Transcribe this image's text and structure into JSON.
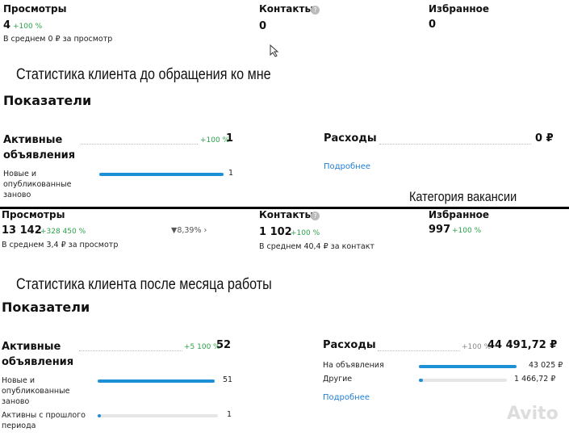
{
  "before": {
    "views": {
      "label": "Просмотры",
      "value": "4",
      "change": "+100 %",
      "avg": "В среднем 0 ₽ за просмотр"
    },
    "contacts": {
      "label": "Контакты",
      "help": "?",
      "value": "0"
    },
    "favorites": {
      "label": "Избранное",
      "value": "0"
    },
    "caption": "Статистика клиента до обращения ко мне",
    "indicators": {
      "title": "Показатели",
      "ads": {
        "label": "Активные объявления",
        "change": "+100 %",
        "value": "1",
        "rows": [
          {
            "label": "Новые и опубликованные заново",
            "value": "1"
          }
        ]
      },
      "expenses": {
        "label": "Расходы",
        "value": "0 ₽",
        "more": "Подробнее"
      }
    }
  },
  "category_caption": "Категория вакансии",
  "after": {
    "views": {
      "label": "Просмотры",
      "value": "13 142",
      "change": "+328 450 %",
      "trend": "8,39%",
      "avg": "В среднем 3,4 ₽ за просмотр"
    },
    "contacts": {
      "label": "Контакты",
      "help": "?",
      "value": "1 102",
      "change": "+100 %",
      "avg": "В среднем 40,4 ₽ за контакт"
    },
    "favorites": {
      "label": "Избранное",
      "value": "997",
      "change": "+100 %"
    },
    "caption": "Статистика клиента после месяца работы",
    "indicators": {
      "title": "Показатели",
      "ads": {
        "label": "Активные объявления",
        "change": "+5 100 %",
        "value": "52",
        "rows": [
          {
            "label": "Новые и опубликованные заново",
            "value": "51"
          },
          {
            "label": "Активны с прошлого периода",
            "value": "1"
          }
        ]
      },
      "expenses": {
        "label": "Расходы",
        "change": "+100 %",
        "value": "44 491,72 ₽",
        "rows": [
          {
            "label": "На объявления",
            "value": "43 025 ₽"
          },
          {
            "label": "Другие",
            "value": "1 466,72 ₽"
          }
        ],
        "more": "Подробнее"
      }
    }
  },
  "watermark": "Avito"
}
